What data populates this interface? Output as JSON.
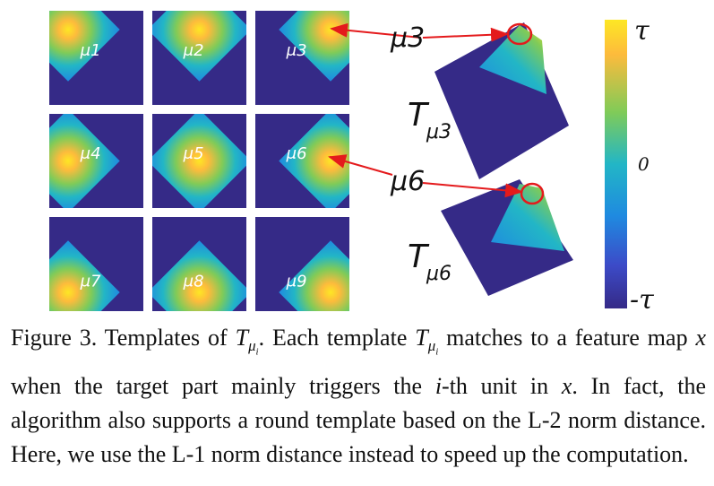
{
  "figure": {
    "templates": [
      {
        "label": "μ1",
        "peak": {
          "row": 0.2,
          "col": 0.2
        }
      },
      {
        "label": "μ2",
        "peak": {
          "row": 0.2,
          "col": 0.5
        }
      },
      {
        "label": "μ3",
        "peak": {
          "row": 0.2,
          "col": 0.8
        }
      },
      {
        "label": "μ4",
        "peak": {
          "row": 0.5,
          "col": 0.2
        }
      },
      {
        "label": "μ5",
        "peak": {
          "row": 0.5,
          "col": 0.5
        }
      },
      {
        "label": "μ6",
        "peak": {
          "row": 0.5,
          "col": 0.8
        }
      },
      {
        "label": "μ7",
        "peak": {
          "row": 0.8,
          "col": 0.2
        }
      },
      {
        "label": "μ8",
        "peak": {
          "row": 0.8,
          "col": 0.5
        }
      },
      {
        "label": "μ9",
        "peak": {
          "row": 0.8,
          "col": 0.8
        }
      }
    ],
    "callout_top": {
      "label": "μ3",
      "surface_label": "T",
      "surface_sub": "μ3"
    },
    "callout_bottom": {
      "label": "μ6",
      "surface_label": "T",
      "surface_sub": "μ6"
    },
    "colorbar": {
      "top_label": "τ",
      "mid_label": "0",
      "bottom_label": "-τ",
      "stops": [
        "#fde724",
        "#fdbb3c",
        "#80cb58",
        "#22b6c6",
        "#1f8ae0",
        "#3c4bc8",
        "#3b2a8f"
      ]
    },
    "colors": {
      "background": "#352a87",
      "arrow": "#e41a1c"
    }
  },
  "caption": {
    "prefix": "Figure 3. Templates of ",
    "sym_T": "T",
    "sym_sub": "μ",
    "sym_subsub": "i",
    "part2": ". Each template ",
    "part3": " matches to a feature map ",
    "sym_x": "x",
    "part4": " when the target part mainly triggers the ",
    "sym_i": "i",
    "part5": "-th unit in ",
    "part6": ". In fact, the algorithm also supports a round template based on the L-2 norm distance. Here, we use the L-1 norm distance instead to speed up the computation."
  }
}
